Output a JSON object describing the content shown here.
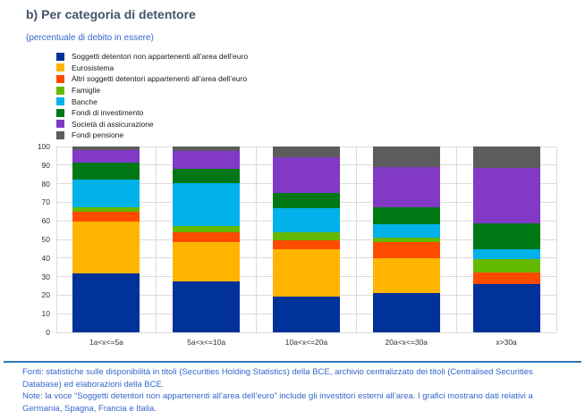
{
  "header": {
    "title": "b) Per categoria di detentore",
    "subtitle": "(percentuale di debito in essere)"
  },
  "chart_data": {
    "type": "bar",
    "stacked": true,
    "title": "b) Per categoria di detentore",
    "subtitle": "(percentuale di debito in essere)",
    "categories": [
      "1a<x<=5a",
      "5a<x<=10a",
      "10a<x<=20a",
      "20a<x<=30a",
      "x>30a"
    ],
    "series": [
      {
        "name": "Soggetti detentori non appartenenti all’area dell’euro",
        "color": "#003299",
        "values": [
          31.5,
          27.5,
          19,
          21,
          26
        ]
      },
      {
        "name": "Eurosistema",
        "color": "#FFB400",
        "values": [
          28,
          21,
          25.5,
          19,
          0
        ]
      },
      {
        "name": "Altri soggetti detentori appartenenti all’area dell’euro",
        "color": "#FF4B00",
        "values": [
          5.5,
          5.5,
          5,
          8.5,
          6
        ]
      },
      {
        "name": "Famiglie",
        "color": "#65B800",
        "values": [
          2.5,
          3,
          4.5,
          2.5,
          7.5
        ]
      },
      {
        "name": "Banche",
        "color": "#00B1EA",
        "values": [
          14.5,
          23.5,
          13,
          7,
          5
        ]
      },
      {
        "name": "Fondi di investimento",
        "color": "#007816",
        "values": [
          9.5,
          7.5,
          8,
          9.5,
          14
        ]
      },
      {
        "name": "Società di assicurazione",
        "color": "#8139C6",
        "values": [
          6.5,
          9.5,
          19.5,
          21.5,
          30
        ]
      },
      {
        "name": "Fondi pensione",
        "color": "#5C5C5C",
        "values": [
          2,
          2.5,
          5.5,
          11,
          11.5
        ]
      }
    ],
    "xlabel": "",
    "ylabel": "",
    "ylim": [
      0,
      100
    ],
    "yticks": [
      0,
      10,
      20,
      30,
      40,
      50,
      60,
      70,
      80,
      90,
      100
    ],
    "grid": true,
    "legend_position": "top-left"
  },
  "footer": {
    "fonti": "Fonti: statistiche sulle disponibilità in titoli (Securities Holding Statistics) della BCE, archivio centralizzato dei titoli (Centralised Securities Database) ed elaborazioni della BCE.",
    "note": "Note: la voce “Soggetti detentori non appartenenti all’area dell’euro” include gli investitori esterni all’area. I grafici mostrano dati relativi a Germania, Spagna, Francia e Italia."
  },
  "colors": {
    "title": "#44546A",
    "subtitle": "#3366CC",
    "footer_text": "#3366CC",
    "divider": "#2E75B6",
    "grid": "#DBDBDB",
    "axis_text": "#303030"
  }
}
